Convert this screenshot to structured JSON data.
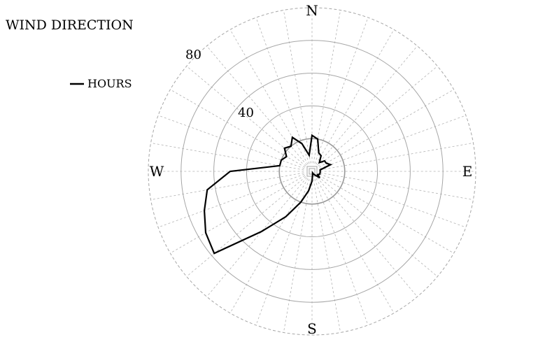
{
  "chart_data": {
    "type": "radar",
    "title": "WIND DIRECTION",
    "legend": {
      "entries": [
        "HOURS"
      ],
      "placement": "top-left"
    },
    "compass_labels": {
      "n": "N",
      "e": "E",
      "s": "S",
      "w": "W"
    },
    "radial_axis": {
      "range": [
        0,
        100
      ],
      "rings": [
        20,
        40,
        60,
        80,
        100
      ],
      "labeled_rings": [
        40,
        80
      ],
      "tick_labels": [
        "40",
        "80"
      ]
    },
    "angular_axis": {
      "directions": 36,
      "step_degrees": 10,
      "zero": "north",
      "direction": "clockwise"
    },
    "grid": true,
    "colors": {
      "series": "#000000",
      "rings": "#a6a6a6",
      "spokes": "#b3b3b3",
      "inner_ring": "#999999"
    },
    "series": [
      {
        "name": "HOURS",
        "bearings": [
          0,
          10,
          20,
          30,
          40,
          50,
          60,
          70,
          80,
          90,
          100,
          110,
          120,
          130,
          140,
          150,
          160,
          170,
          180,
          190,
          200,
          210,
          220,
          230,
          240,
          250,
          260,
          270,
          280,
          290,
          300,
          310,
          320,
          330,
          340,
          350
        ],
        "values": [
          22,
          20,
          12,
          11,
          7,
          10,
          10,
          12,
          5,
          5,
          5,
          5,
          4,
          6,
          3,
          2,
          1,
          2,
          6,
          12,
          20,
          32,
          48,
          78,
          75,
          70,
          65,
          50,
          20,
          20,
          18,
          22,
          20,
          24,
          18,
          10
        ]
      }
    ]
  }
}
